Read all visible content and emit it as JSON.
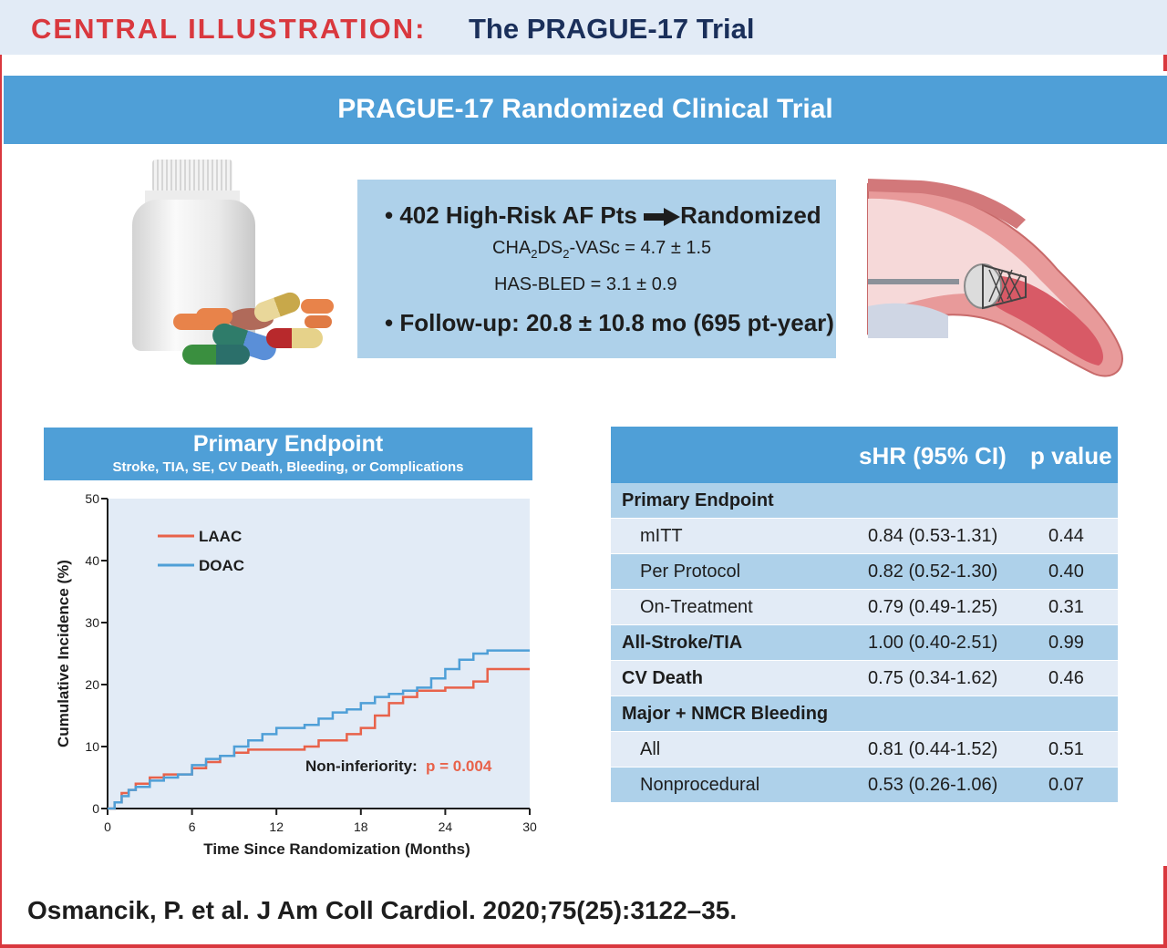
{
  "header": {
    "label": "CENTRAL ILLUSTRATION:",
    "title": "The PRAGUE-17 Trial"
  },
  "banner": {
    "text": "PRAGUE-17 Randomized Clinical Trial"
  },
  "info_box": {
    "line1_left": "• 402 High-Risk AF Pts",
    "line1_right": "Randomized",
    "cha_prefix": "CHA",
    "cha_sub1": "2",
    "cha_mid": "DS",
    "cha_sub2": "2",
    "cha_suffix": "-VASc = 4.7 ± 1.5",
    "has_bled": "HAS-BLED = 3.1 ± 0.9",
    "followup": "• Follow-up: 20.8 ± 10.8 mo (695 pt-year)"
  },
  "chart_header": {
    "title": "Primary Endpoint",
    "subtitle": "Stroke, TIA, SE, CV Death, Bleeding, or Complications"
  },
  "chart_data": {
    "type": "line",
    "xlabel": "Time Since Randomization (Months)",
    "ylabel": "Cumulative Incidence (%)",
    "xlim": [
      0,
      30
    ],
    "ylim": [
      0,
      50
    ],
    "xticks": [
      "0",
      "6",
      "12",
      "18",
      "24",
      "30"
    ],
    "yticks": [
      "0",
      "10",
      "20",
      "30",
      "40",
      "50"
    ],
    "legend_position": "top-left",
    "annotation_text": "Non-inferiority:",
    "annotation_p": "p = 0.004",
    "series": [
      {
        "name": "LAAC",
        "color": "#e8624a",
        "x": [
          0,
          0.5,
          1,
          1.5,
          2,
          3,
          4,
          5,
          6,
          7,
          8,
          9,
          10,
          12,
          14,
          15,
          17,
          18,
          19,
          20,
          21,
          22,
          23,
          24,
          25,
          26,
          27,
          28,
          30
        ],
        "y": [
          0,
          1,
          2.5,
          3,
          4,
          5,
          5.5,
          5.5,
          6.5,
          7.5,
          8.5,
          9,
          9.5,
          9.5,
          10,
          11,
          12,
          13,
          15,
          17,
          18,
          19,
          19,
          19.5,
          19.5,
          20.5,
          22.5,
          22.5,
          22.5
        ]
      },
      {
        "name": "DOAC",
        "color": "#4f9fd7",
        "x": [
          0,
          0.5,
          1,
          1.5,
          2,
          3,
          4,
          5,
          6,
          7,
          8,
          9,
          10,
          11,
          12,
          14,
          15,
          16,
          17,
          18,
          19,
          20,
          21,
          22,
          23,
          24,
          25,
          26,
          27,
          28,
          30
        ],
        "y": [
          0,
          1,
          2,
          3,
          3.5,
          4.5,
          5,
          5.5,
          7,
          8,
          8.5,
          10,
          11,
          12,
          13,
          13.5,
          14.5,
          15.5,
          16,
          17,
          18,
          18.5,
          19,
          19.5,
          21,
          22.5,
          24,
          25,
          25.5,
          25.5,
          25.5
        ]
      }
    ]
  },
  "table": {
    "col_shr": "sHR (95% CI)",
    "col_p": "p value",
    "rows": [
      {
        "label": "Primary Endpoint",
        "shr": "",
        "p": "",
        "style": "dark",
        "bold": true,
        "indent": 0
      },
      {
        "label": "mITT",
        "shr": "0.84 (0.53-1.31)",
        "p": "0.44",
        "style": "light",
        "bold": false,
        "indent": 1
      },
      {
        "label": "Per Protocol",
        "shr": "0.82 (0.52-1.30)",
        "p": "0.40",
        "style": "dark",
        "bold": false,
        "indent": 1
      },
      {
        "label": "On-Treatment",
        "shr": "0.79 (0.49-1.25)",
        "p": "0.31",
        "style": "light",
        "bold": false,
        "indent": 1
      },
      {
        "label": "All-Stroke/TIA",
        "shr": "1.00 (0.40-2.51)",
        "p": "0.99",
        "style": "dark",
        "bold": true,
        "indent": 0
      },
      {
        "label": "CV Death",
        "shr": "0.75 (0.34-1.62)",
        "p": "0.46",
        "style": "light",
        "bold": true,
        "indent": 0
      },
      {
        "label": "Major + NMCR Bleeding",
        "shr": "",
        "p": "",
        "style": "dark",
        "bold": true,
        "indent": 0
      },
      {
        "label": "All",
        "shr": "0.81 (0.44-1.52)",
        "p": "0.51",
        "style": "light",
        "bold": false,
        "indent": 1
      },
      {
        "label": "Nonprocedural",
        "shr": "0.53 (0.26-1.06)",
        "p": "0.07",
        "style": "dark",
        "bold": false,
        "indent": 1
      }
    ]
  },
  "citation": "Osmancik, P. et al. J Am Coll Cardiol. 2020;75(25):3122–35.",
  "colors": {
    "accent_red": "#d9383e",
    "banner_blue": "#4f9fd7",
    "light_blue": "#aed1ea",
    "pale_blue": "#e2ebf6",
    "navy": "#1a2f5a"
  }
}
